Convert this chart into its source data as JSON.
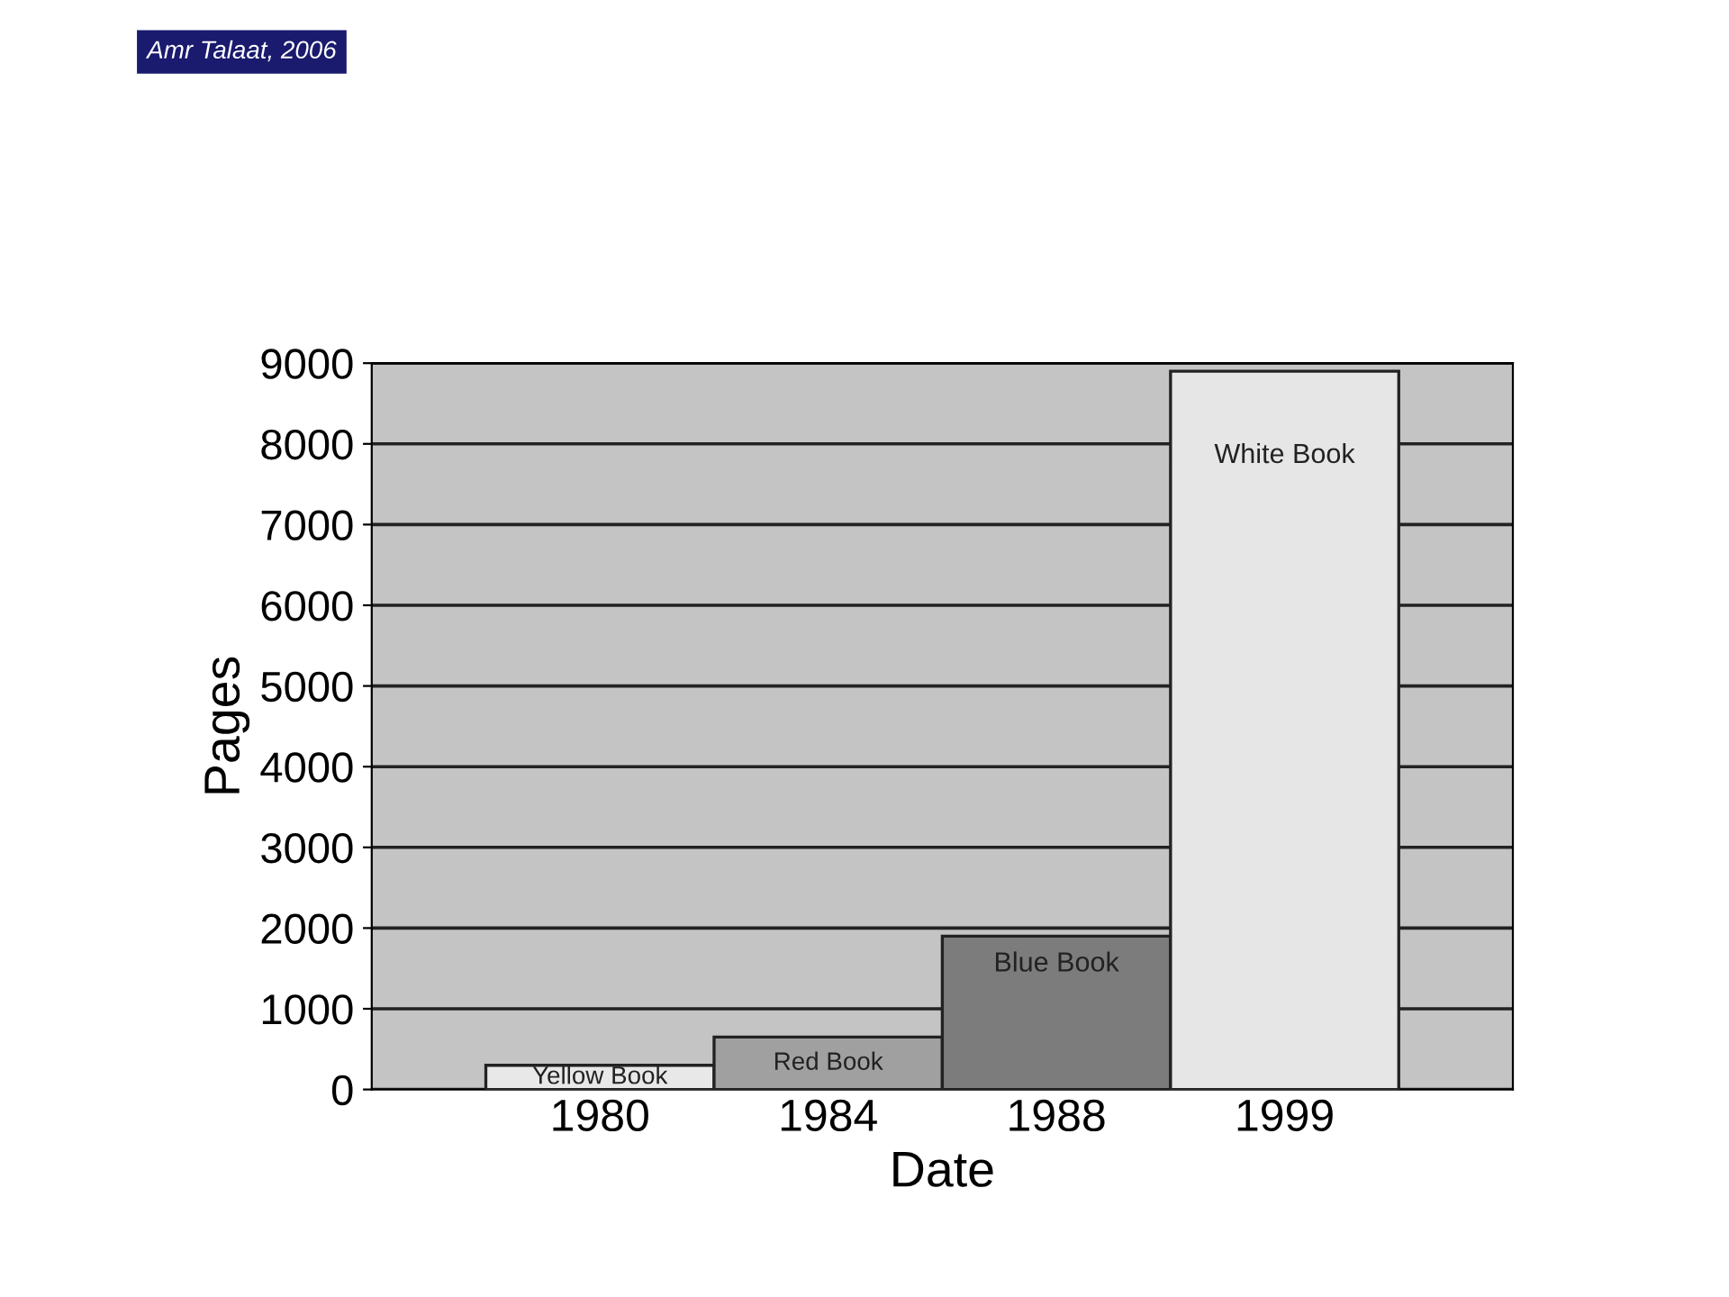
{
  "chart_data": {
    "type": "bar",
    "xlabel": "Date",
    "ylabel": "Pages",
    "categories": [
      "1980",
      "1984",
      "1988",
      "1999"
    ],
    "values": [
      300,
      650,
      1900,
      8900
    ],
    "colors": [
      "#e8e8e8",
      "#a0a0a0",
      "#7c7c7c",
      "#e6e6e6"
    ],
    "ylim": [
      0,
      9000
    ],
    "yticks": [
      0,
      1000,
      2000,
      3000,
      4000,
      5000,
      6000,
      7000,
      8000,
      9000
    ],
    "grid": "y",
    "annotations": [
      {
        "text": "Yellow Book",
        "x": "1980",
        "y": 300
      },
      {
        "text": "Red Book",
        "x": "1984",
        "y": 650
      },
      {
        "text": "Blue Book",
        "x": "1988",
        "y": 1900
      },
      {
        "text": "White Book",
        "x": "1999",
        "y": 8900
      },
      "Amr Talaat, 2006"
    ]
  }
}
